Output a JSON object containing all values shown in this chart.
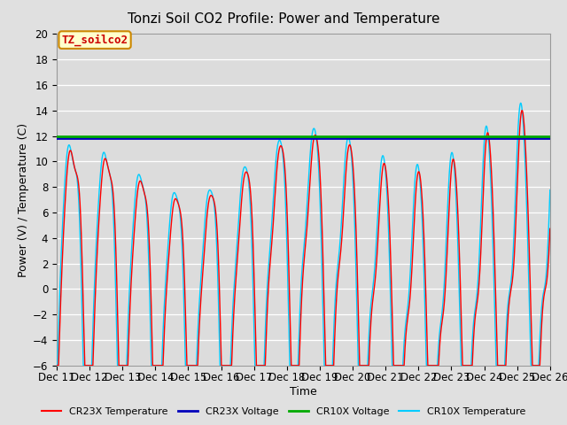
{
  "title": "Tonzi Soil CO2 Profile: Power and Temperature",
  "xlabel": "Time",
  "ylabel": "Power (V) / Temperature (C)",
  "ylim": [
    -6,
    20
  ],
  "yticks": [
    -6,
    -4,
    -2,
    0,
    2,
    4,
    6,
    8,
    10,
    12,
    14,
    16,
    18,
    20
  ],
  "xtick_labels": [
    "Dec 11",
    "Dec 12",
    "Dec 13",
    "Dec 14",
    "Dec 15",
    "Dec 16",
    "Dec 17",
    "Dec 18",
    "Dec 19",
    "Dec 20",
    "Dec 21",
    "Dec 22",
    "Dec 23",
    "Dec 24",
    "Dec 25",
    "Dec 26"
  ],
  "cr23x_voltage": 11.85,
  "cr10x_voltage": 12.0,
  "cr23x_color": "#FF0000",
  "cr10x_color": "#00CCFF",
  "cr23x_voltage_color": "#0000BB",
  "cr10x_voltage_color": "#00AA00",
  "background_color": "#E0E0E0",
  "plot_bg_color": "#DCDCDC",
  "grid_color": "#FFFFFF",
  "legend_box_color": "#FFFFCC",
  "legend_box_edge": "#CC8800",
  "annotation_text": "TZ_soilco2",
  "annotation_color": "#CC0000",
  "title_fontsize": 11,
  "axis_fontsize": 9,
  "tick_fontsize": 8.5
}
